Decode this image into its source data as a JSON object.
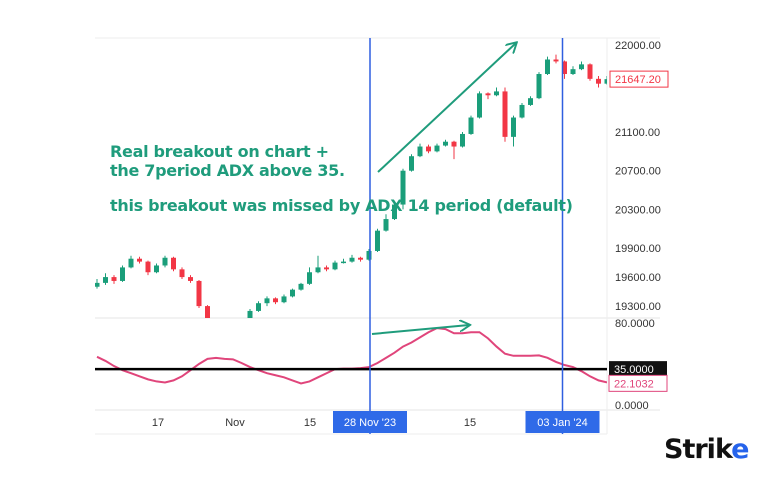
{
  "chart_data": {
    "type": "candlestick",
    "price_axis": {
      "ticks": [
        "22000.00",
        "21100.00",
        "20700.00",
        "20300.00",
        "19900.00",
        "19600.00",
        "19300.00"
      ],
      "tick_values": [
        22000,
        21100,
        20700,
        20300,
        19900,
        19600,
        19300
      ],
      "last_price_label": "21647.20",
      "range": [
        19300,
        22000
      ]
    },
    "candles": [
      [
        19500,
        19580,
        19480,
        19540
      ],
      [
        19540,
        19640,
        19520,
        19600
      ],
      [
        19600,
        19620,
        19530,
        19560
      ],
      [
        19560,
        19720,
        19550,
        19700
      ],
      [
        19700,
        19820,
        19690,
        19790
      ],
      [
        19790,
        19810,
        19740,
        19760
      ],
      [
        19760,
        19770,
        19620,
        19650
      ],
      [
        19650,
        19740,
        19640,
        19720
      ],
      [
        19720,
        19820,
        19700,
        19800
      ],
      [
        19800,
        19810,
        19660,
        19680
      ],
      [
        19680,
        19700,
        19580,
        19600
      ],
      [
        19600,
        19620,
        19540,
        19560
      ],
      [
        19560,
        19570,
        19280,
        19300
      ],
      [
        19300,
        19310,
        19080,
        19100
      ],
      [
        19100,
        19120,
        19020,
        19050
      ],
      [
        19050,
        19100,
        19030,
        19080
      ],
      [
        19080,
        19090,
        19020,
        19050
      ],
      [
        19050,
        19150,
        19040,
        19120
      ],
      [
        19120,
        19270,
        19110,
        19250
      ],
      [
        19250,
        19350,
        19240,
        19330
      ],
      [
        19330,
        19400,
        19300,
        19380
      ],
      [
        19380,
        19390,
        19320,
        19340
      ],
      [
        19340,
        19420,
        19330,
        19400
      ],
      [
        19400,
        19480,
        19390,
        19470
      ],
      [
        19470,
        19540,
        19460,
        19530
      ],
      [
        19530,
        19700,
        19520,
        19650
      ],
      [
        19650,
        19820,
        19640,
        19700
      ],
      [
        19700,
        19720,
        19660,
        19680
      ],
      [
        19680,
        19770,
        19670,
        19750
      ],
      [
        19750,
        19790,
        19740,
        19760
      ],
      [
        19760,
        19830,
        19750,
        19800
      ],
      [
        19800,
        19810,
        19760,
        19780
      ],
      [
        19780,
        19890,
        19770,
        19870
      ],
      [
        19870,
        20100,
        19860,
        20080
      ],
      [
        20080,
        20250,
        20070,
        20200
      ],
      [
        20200,
        20370,
        20190,
        20350
      ],
      [
        20350,
        20720,
        20300,
        20700
      ],
      [
        20700,
        20870,
        20690,
        20850
      ],
      [
        20850,
        20980,
        20840,
        20950
      ],
      [
        20950,
        20970,
        20880,
        20900
      ],
      [
        20900,
        20980,
        20890,
        20960
      ],
      [
        20960,
        21020,
        20950,
        21000
      ],
      [
        21000,
        21010,
        20820,
        20950
      ],
      [
        20950,
        21100,
        20940,
        21080
      ],
      [
        21080,
        21270,
        21070,
        21250
      ],
      [
        21250,
        21520,
        21240,
        21500
      ],
      [
        21500,
        21510,
        21440,
        21480
      ],
      [
        21480,
        21560,
        21470,
        21520
      ],
      [
        21520,
        21560,
        21000,
        21050
      ],
      [
        21050,
        21270,
        20950,
        21250
      ],
      [
        21250,
        21400,
        21240,
        21380
      ],
      [
        21380,
        21470,
        21370,
        21450
      ],
      [
        21450,
        21720,
        21440,
        21700
      ],
      [
        21700,
        21880,
        21690,
        21850
      ],
      [
        21850,
        21900,
        21810,
        21830
      ],
      [
        21830,
        21840,
        21650,
        21700
      ],
      [
        21700,
        21780,
        21690,
        21750
      ],
      [
        21750,
        21830,
        21740,
        21800
      ],
      [
        21800,
        21810,
        21630,
        21650
      ],
      [
        21650,
        21680,
        21560,
        21600
      ],
      [
        21600,
        21680,
        21590,
        21647.2
      ]
    ],
    "adx": {
      "axis_ticks": [
        "80.0000",
        "0.0000"
      ],
      "axis_values": [
        80,
        0
      ],
      "range": [
        0,
        80
      ],
      "threshold_label": "35.0000",
      "threshold": 35,
      "last_value_label": "22.1032",
      "values": [
        47,
        43,
        38,
        34,
        31,
        28,
        25,
        23,
        22,
        24,
        28,
        34,
        40,
        45,
        46,
        45,
        44.5,
        41,
        37,
        34,
        31,
        29,
        27,
        24,
        21,
        23,
        27,
        31,
        35,
        35.5,
        35.5,
        36,
        37,
        41,
        46,
        51,
        57,
        61,
        66,
        71,
        75,
        74,
        70,
        70,
        71,
        71,
        65,
        57,
        50,
        48,
        48,
        48,
        48.4,
        46,
        42,
        39,
        37,
        33,
        28,
        24,
        22.1
      ]
    },
    "x_axis": {
      "ticks": [
        "17",
        "Nov",
        "15",
        "15"
      ],
      "highlighted_dates": [
        "28 Nov '23",
        "03 Jan '24"
      ]
    },
    "colors": {
      "up": "#1a9e7a",
      "down": "#f23645",
      "adx_line": "#e0457b",
      "threshold_line": "#000000",
      "marker_line": "#2f5fe0",
      "annotation": "#1f9c7c"
    }
  },
  "annotations": {
    "line1": "Real breakout on chart +",
    "line2": "the 7period ADX above 35.",
    "line3": "this breakout was missed by ADX 14 period (default)"
  },
  "logo": {
    "text": "Strike"
  }
}
